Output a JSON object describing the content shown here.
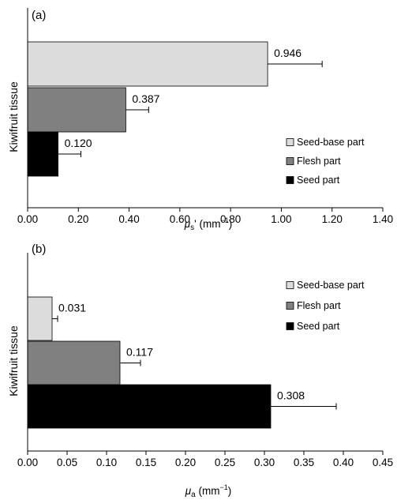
{
  "chart_data": [
    {
      "type": "bar",
      "orientation": "horizontal",
      "panel_label": "(a)",
      "ylabel": "Kiwifruit tissue",
      "xlabel_symbol": "μ",
      "xlabel_sub": "s",
      "xlabel_rest": "' (mm",
      "xlabel_exp": "−1",
      "xlabel_close": ")",
      "xlim": [
        0,
        1.4
      ],
      "xticks": [
        "0.00",
        "0.20",
        "0.40",
        "0.60",
        "0.80",
        "1.00",
        "1.20",
        "1.40"
      ],
      "grid": false,
      "legend_position": "right",
      "series": [
        {
          "name": "Seed-base part",
          "value": 0.946,
          "label": "0.946",
          "error": 0.215,
          "color": "#dcdcdc"
        },
        {
          "name": "Flesh part",
          "value": 0.387,
          "label": "0.387",
          "error": 0.09,
          "color": "#808080"
        },
        {
          "name": "Seed part",
          "value": 0.12,
          "label": "0.120",
          "error": 0.09,
          "color": "#000000"
        }
      ]
    },
    {
      "type": "bar",
      "orientation": "horizontal",
      "panel_label": "(b)",
      "ylabel": "Kiwifruit tissue",
      "xlabel_symbol": "μ",
      "xlabel_sub": "a",
      "xlabel_rest": " (mm",
      "xlabel_exp": "−1",
      "xlabel_close": ")",
      "xlim": [
        0,
        0.45
      ],
      "xticks": [
        "0.00",
        "0.05",
        "0.10",
        "0.15",
        "0.20",
        "0.25",
        "0.30",
        "0.35",
        "0.40",
        "0.45"
      ],
      "grid": false,
      "legend_position": "top-right",
      "series": [
        {
          "name": "Seed-base part",
          "value": 0.031,
          "label": "0.031",
          "error": 0.007,
          "color": "#dcdcdc"
        },
        {
          "name": "Flesh part",
          "value": 0.117,
          "label": "0.117",
          "error": 0.026,
          "color": "#808080"
        },
        {
          "name": "Seed part",
          "value": 0.308,
          "label": "0.308",
          "error": 0.083,
          "color": "#000000"
        }
      ]
    }
  ]
}
